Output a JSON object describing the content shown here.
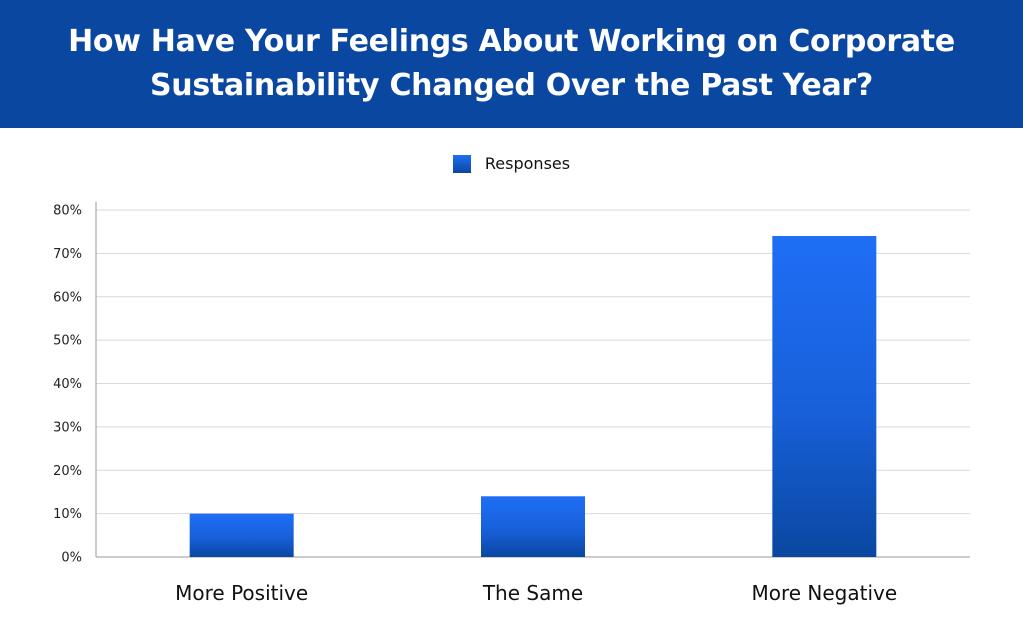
{
  "chart_data": {
    "type": "bar",
    "title_lines": [
      "How Have Your Feelings About Working on Corporate",
      "Sustainability Changed Over the Past Year?"
    ],
    "categories": [
      "More Positive",
      "The Same",
      "More Negative"
    ],
    "series": [
      {
        "name": "Responses",
        "values": [
          10,
          14,
          74
        ]
      }
    ],
    "xlabel": "",
    "ylabel": "",
    "ylim": [
      0,
      80
    ],
    "yticks": [
      0,
      10,
      20,
      30,
      40,
      50,
      60,
      70,
      80
    ],
    "ytick_labels": [
      "0%",
      "10%",
      "20%",
      "30%",
      "40%",
      "50%",
      "60%",
      "70%",
      "80%"
    ],
    "grid": true,
    "legend_position": "top-center"
  },
  "colors": {
    "header_bg": "#0A47A1",
    "bar_top": "#1E6EF5",
    "bar_bottom": "#0A47A1",
    "grid": "#D9D9D9"
  }
}
